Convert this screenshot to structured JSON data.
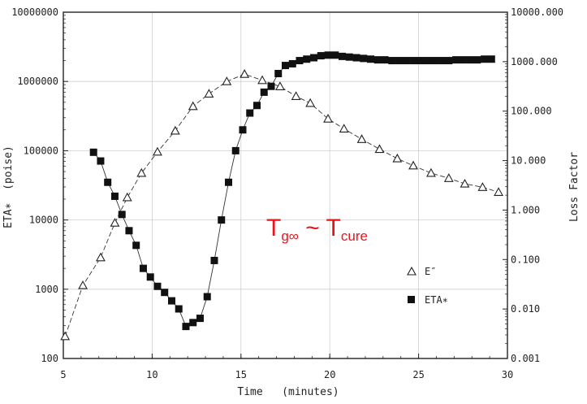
{
  "chart_data": {
    "type": "scatter",
    "xlabel": "Time   (minutes)",
    "ylabel_left": "ETA∗  (poise)",
    "ylabel_right": "Loss Factor",
    "xlim": [
      5,
      30
    ],
    "xticks": [
      "5",
      "10",
      "15",
      "20",
      "25",
      "30"
    ],
    "ylim_left": [
      100,
      10000000
    ],
    "yscale_left": "log",
    "yticks_left": [
      "100",
      "1000",
      "10000",
      "100000",
      "1000000",
      "10000000"
    ],
    "ylim_right": [
      0.001,
      10000
    ],
    "yscale_right": "log",
    "yticks_right": [
      "0.001",
      "0.010",
      "0.100",
      "1.000",
      "10.000",
      "100.000",
      "1000.000",
      "10000.000"
    ],
    "grid": true,
    "legend_placement": "lower-right",
    "annotation": {
      "main": "T",
      "sub1": "g∞",
      "mid": " ~ T",
      "sub2": "cure",
      "color": "#e8131b"
    },
    "series": [
      {
        "name": "E″",
        "marker": "open-triangle",
        "axis": "right",
        "x": [
          5.1,
          6.1,
          7.1,
          7.9,
          8.6,
          9.4,
          10.3,
          11.3,
          12.3,
          13.2,
          14.2,
          15.2,
          16.2,
          17.2,
          18.1,
          18.9,
          19.9,
          20.8,
          21.8,
          22.8,
          23.8,
          24.7,
          25.7,
          26.7,
          27.6,
          28.6,
          29.5
        ],
        "y": [
          0.0028,
          0.03,
          0.11,
          0.55,
          1.8,
          5.6,
          15,
          40,
          125,
          224,
          398,
          560,
          420,
          315,
          200,
          145,
          70,
          44,
          27,
          17,
          11,
          7.9,
          5.6,
          4.4,
          3.4,
          2.9,
          2.3
        ]
      },
      {
        "name": "ETA∗",
        "marker": "filled-square",
        "axis": "left",
        "x": [
          6.7,
          7.1,
          7.5,
          7.9,
          8.3,
          8.7,
          9.1,
          9.5,
          9.9,
          10.3,
          10.7,
          11.1,
          11.5,
          11.9,
          12.3,
          12.7,
          13.1,
          13.5,
          13.9,
          14.3,
          14.7,
          15.1,
          15.5,
          15.9,
          16.3,
          16.7,
          17.1,
          17.5,
          17.9,
          18.3,
          18.7,
          19.1,
          19.5,
          19.9,
          20.3,
          20.7,
          21.1,
          21.5,
          21.9,
          22.3,
          22.7,
          23.1,
          23.5,
          23.9,
          24.3,
          24.7,
          25.1,
          25.5,
          25.9,
          26.3,
          26.7,
          27.1,
          27.5,
          27.9,
          28.3,
          28.7,
          29.1
        ],
        "y": [
          95000,
          71000,
          35000,
          22000,
          12000,
          7000,
          4300,
          2000,
          1500,
          1100,
          900,
          680,
          520,
          290,
          330,
          380,
          780,
          2600,
          10000,
          35000,
          100000,
          200000,
          350000,
          450000,
          700000,
          850000,
          1300000,
          1700000,
          1800000,
          2000000,
          2100000,
          2200000,
          2350000,
          2400000,
          2400000,
          2300000,
          2250000,
          2200000,
          2150000,
          2100000,
          2050000,
          2050000,
          2000000,
          2000000,
          2000000,
          2000000,
          2000000,
          2000000,
          2000000,
          2000000,
          2000000,
          2050000,
          2050000,
          2050000,
          2050000,
          2100000,
          2100000
        ]
      }
    ]
  }
}
